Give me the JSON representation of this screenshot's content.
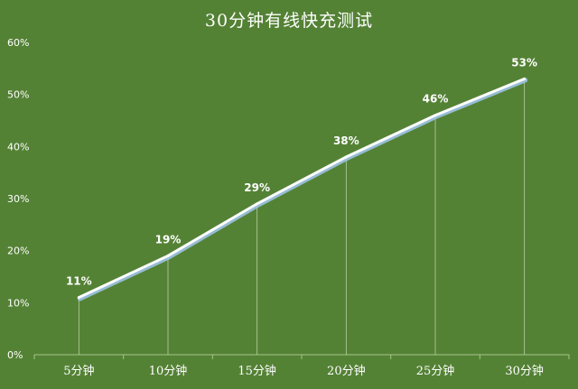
{
  "chart_data": {
    "type": "line",
    "title": "30分钟有线快充测试",
    "xlabel": "",
    "ylabel": "",
    "categories": [
      "5分钟",
      "10分钟",
      "15分钟",
      "20分钟",
      "25分钟",
      "30分钟"
    ],
    "series": [
      {
        "values": [
          11,
          19,
          29,
          38,
          46,
          53
        ],
        "labels": [
          "11%",
          "19%",
          "29%",
          "38%",
          "46%",
          "53%"
        ]
      }
    ],
    "ylim": [
      0,
      60
    ],
    "yticks": [
      "0%",
      "10%",
      "20%",
      "30%",
      "40%",
      "50%",
      "60%"
    ],
    "grid": false,
    "drop_lines": true,
    "legend": "none",
    "colors": {
      "background": "#548235",
      "line": "#ffffff",
      "line_shadow": "#9dc3e6",
      "text": "#ffffff"
    }
  }
}
